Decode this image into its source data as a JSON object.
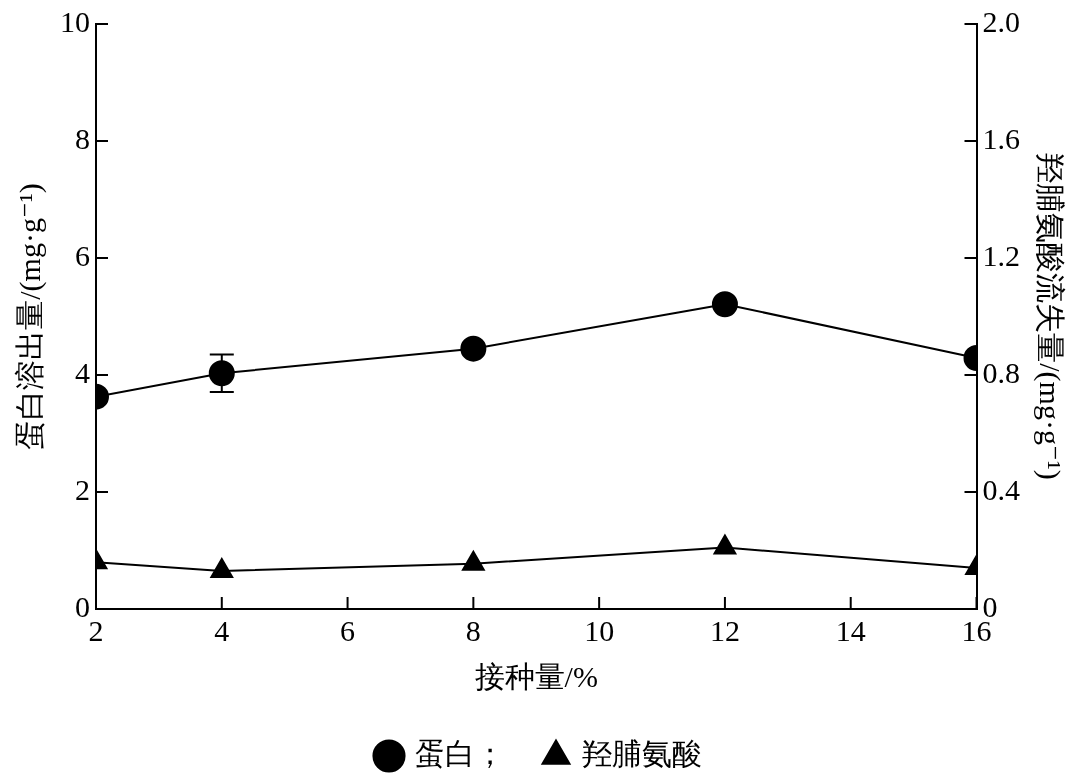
{
  "chart_data": {
    "type": "line",
    "xlabel": "接种量/%",
    "ylabel": "蛋白溶出量/(mg·g⁻¹)",
    "y2label": "羟脯氨酸流失量/(mg·g⁻¹)",
    "x": [
      2,
      4,
      8,
      12,
      16
    ],
    "series": [
      {
        "name": "蛋白；",
        "color": "#000000",
        "marker": "circle",
        "values": [
          3.63,
          4.03,
          4.45,
          5.21,
          4.29
        ],
        "errors": [
          null,
          0.32,
          null,
          null,
          null
        ]
      },
      {
        "name": "羟脯氨酸",
        "color": "#000000",
        "marker": "triangle",
        "axis": "y2",
        "values": [
          0.16,
          0.13,
          0.155,
          0.21,
          0.14
        ]
      }
    ],
    "xlim": [
      2,
      16
    ],
    "xticks": [
      2,
      4,
      6,
      8,
      10,
      12,
      14,
      16
    ],
    "ylim": [
      0,
      10
    ],
    "yticks": [
      0,
      2,
      4,
      6,
      8,
      10
    ],
    "y2lim": [
      0,
      2
    ],
    "y2ticks": [
      {
        "value": 0,
        "label": "0"
      },
      {
        "value": 0.4,
        "label": "0.4"
      },
      {
        "value": 0.8,
        "label": "0.8"
      },
      {
        "value": 1.2,
        "label": "1.2"
      },
      {
        "value": 1.6,
        "label": "1.6"
      },
      {
        "value": 2,
        "label": "2.0"
      }
    ],
    "grid": false,
    "legend": "bottom",
    "line_style": "solid"
  }
}
